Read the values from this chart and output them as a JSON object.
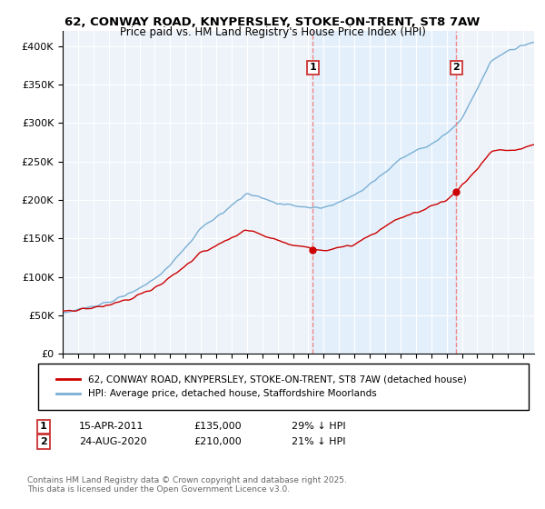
{
  "title1": "62, CONWAY ROAD, KNYPERSLEY, STOKE-ON-TRENT, ST8 7AW",
  "title2": "Price paid vs. HM Land Registry's House Price Index (HPI)",
  "legend_label1": "62, CONWAY ROAD, KNYPERSLEY, STOKE-ON-TRENT, ST8 7AW (detached house)",
  "legend_label2": "HPI: Average price, detached house, Staffordshire Moorlands",
  "annotation1_date": "15-APR-2011",
  "annotation1_price": "£135,000",
  "annotation1_pct": "29% ↓ HPI",
  "annotation2_date": "24-AUG-2020",
  "annotation2_price": "£210,000",
  "annotation2_pct": "21% ↓ HPI",
  "footer": "Contains HM Land Registry data © Crown copyright and database right 2025.\nThis data is licensed under the Open Government Licence v3.0.",
  "color_red": "#cc0000",
  "color_blue": "#7aafd4",
  "color_vline": "#ee8888",
  "color_shade": "#ddeeff",
  "ylim_min": 0,
  "ylim_max": 420000,
  "x_start_year": 1995.0,
  "x_end_year": 2025.7
}
